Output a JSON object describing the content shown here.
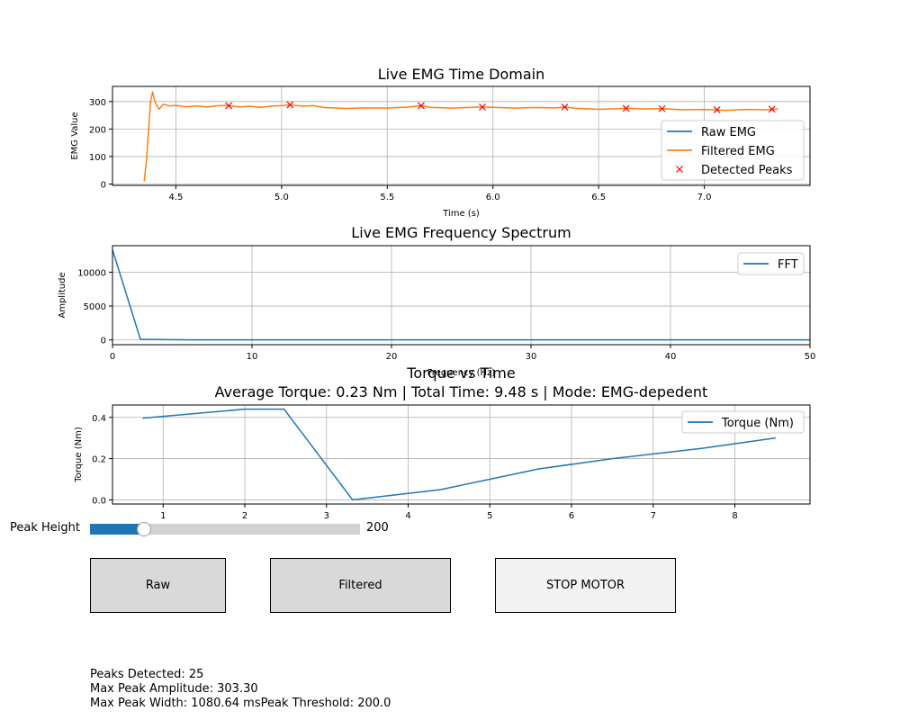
{
  "chart_data": [
    {
      "type": "line",
      "title": "Live EMG Time Domain",
      "xlabel": "Time (s)",
      "ylabel": "EMG Value",
      "xlim": [
        4.2,
        7.5
      ],
      "ylim": [
        -5,
        355
      ],
      "xticks": [
        4.5,
        5.0,
        5.5,
        6.0,
        6.5,
        7.0
      ],
      "yticks": [
        0,
        100,
        200,
        300
      ],
      "grid": true,
      "legend_position": "right",
      "series": [
        {
          "name": "Raw EMG",
          "color": "#1f77b4",
          "x": [],
          "y": []
        },
        {
          "name": "Filtered EMG",
          "color": "#ff7f0e",
          "x": [
            4.35,
            4.36,
            4.38,
            4.39,
            4.4,
            4.42,
            4.44,
            4.47,
            4.5,
            4.55,
            4.6,
            4.65,
            4.7,
            4.75,
            4.8,
            4.85,
            4.9,
            4.95,
            5.0,
            5.04,
            5.1,
            5.15,
            5.2,
            5.3,
            5.4,
            5.5,
            5.6,
            5.66,
            5.7,
            5.8,
            5.9,
            5.95,
            6.0,
            6.1,
            6.2,
            6.3,
            6.34,
            6.4,
            6.5,
            6.6,
            6.63,
            6.7,
            6.8,
            6.9,
            7.0,
            7.05,
            7.1,
            7.2,
            7.3,
            7.35
          ],
          "y": [
            10,
            80,
            300,
            335,
            300,
            272,
            290,
            284,
            286,
            281,
            284,
            280,
            285,
            285,
            280,
            283,
            279,
            283,
            285,
            288,
            283,
            285,
            278,
            275,
            277,
            276,
            280,
            285,
            279,
            276,
            279,
            280,
            279,
            276,
            278,
            277,
            280,
            275,
            272,
            274,
            276,
            273,
            274,
            270,
            271,
            270,
            268,
            271,
            270,
            273
          ]
        },
        {
          "name": "Detected Peaks",
          "color": "#ff0000",
          "marker": "x",
          "x": [
            4.75,
            5.04,
            5.66,
            5.95,
            6.34,
            6.63,
            6.8,
            7.06,
            7.32
          ],
          "y": [
            285,
            288,
            285,
            280,
            280,
            275,
            274,
            270,
            272
          ]
        }
      ]
    },
    {
      "type": "line",
      "title": "Live EMG Frequency Spectrum",
      "xlabel": "Frequency (Hz)",
      "ylabel": "Amplitude",
      "xlim": [
        0,
        50
      ],
      "ylim": [
        -700,
        13900
      ],
      "xticks": [
        0,
        10,
        20,
        30,
        40,
        50
      ],
      "yticks": [
        0,
        5000,
        10000
      ],
      "grid": true,
      "legend_position": "top-right",
      "series": [
        {
          "name": "FFT",
          "color": "#1f77b4",
          "x": [
            0,
            2,
            4,
            6,
            8,
            10,
            15,
            20,
            30,
            40,
            50
          ],
          "y": [
            13300,
            100,
            40,
            20,
            10,
            10,
            10,
            10,
            10,
            10,
            10
          ]
        }
      ]
    },
    {
      "type": "line",
      "title": "Torque vs Time",
      "subtitle": "Average Torque: 0.23 Nm | Total Time: 9.48 s | Mode: EMG-depedent",
      "xlabel": "",
      "ylabel": "Torque (Nm)",
      "xlim": [
        0.38,
        8.92
      ],
      "ylim": [
        -0.02,
        0.46
      ],
      "xticks": [
        1,
        2,
        3,
        4,
        5,
        6,
        7,
        8
      ],
      "yticks": [
        0.0,
        0.2,
        0.4
      ],
      "grid": true,
      "legend_position": "top-right",
      "series": [
        {
          "name": "Torque (Nm)",
          "color": "#1f77b4",
          "x": [
            0.75,
            2.0,
            2.48,
            3.32,
            4.4,
            5.6,
            6.5,
            7.6,
            8.5
          ],
          "y": [
            0.396,
            0.44,
            0.44,
            0.0,
            0.05,
            0.15,
            0.2,
            0.25,
            0.3
          ]
        }
      ]
    }
  ],
  "controls": {
    "slider_label": "Peak Height",
    "slider_value": "200",
    "slider_fraction": 0.2,
    "buttons": {
      "raw": "Raw",
      "filtered": "Filtered",
      "stop": "STOP MOTOR"
    }
  },
  "stats": {
    "line1": "Peaks Detected: 25",
    "line2": "Max Peak Amplitude: 303.30",
    "line3": "Max Peak Width: 1080.64 msPeak Threshold: 200.0"
  }
}
